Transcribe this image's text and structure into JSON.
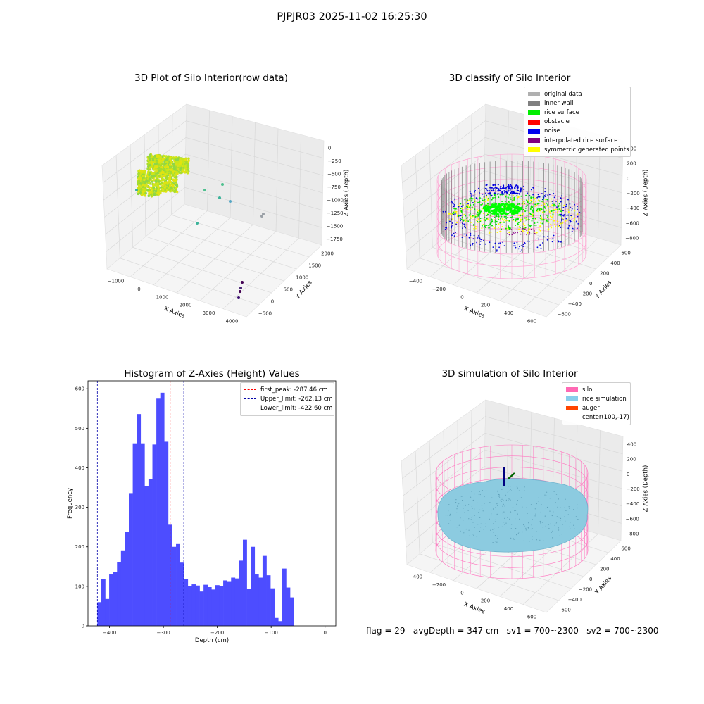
{
  "figure": {
    "suptitle": "PJPJR03 2025-11-02 16:25:30",
    "footer": "flag = 29   avgDepth = 347 cm   sv1 = 700~2300   sv2 = 700~2300"
  },
  "panels": {
    "raw": {
      "title": "3D Plot of Silo Interior(row data)",
      "xlabel": "X Axies",
      "ylabel": "Y Axies",
      "zlabel": "Z Axies (Depth)",
      "xticks": [
        "−1000",
        "0",
        "1000",
        "2000",
        "3000",
        "4000"
      ],
      "yticks": [
        "−500",
        "0",
        "500",
        "1000",
        "1500",
        "2000"
      ],
      "zticks": [
        "0",
        "−250",
        "−500",
        "−750",
        "−1000",
        "−1250",
        "−1500",
        "−1750"
      ]
    },
    "classify": {
      "title": "3D classify of Silo Interior",
      "xlabel": "X Axies",
      "ylabel": "Y Axies",
      "zlabel": "Z Axies (Depth)",
      "xticks": [
        "−400",
        "−200",
        "0",
        "200",
        "400",
        "600"
      ],
      "yticks": [
        "−600",
        "−400",
        "−200",
        "0",
        "200",
        "400",
        "600"
      ],
      "zticks": [
        "400",
        "200",
        "0",
        "−200",
        "−400",
        "−600",
        "−800"
      ],
      "legend": [
        {
          "label": "original data",
          "color": "#b0b0b0"
        },
        {
          "label": "inner wall",
          "color": "#808080"
        },
        {
          "label": "rice surface",
          "color": "#00ee00"
        },
        {
          "label": "obstacle",
          "color": "#ff0000"
        },
        {
          "label": "noise",
          "color": "#0000ee"
        },
        {
          "label": "interpolated rice surface",
          "color": "#800080"
        },
        {
          "label": "symmetric generated points",
          "color": "#ffff00"
        }
      ]
    },
    "simulation": {
      "title": "3D simulation of Silo Interior",
      "xlabel": "X Axies",
      "ylabel": "Y Axies",
      "zlabel": "Z Axies (Depth)",
      "xticks": [
        "−400",
        "−200",
        "0",
        "200",
        "400",
        "600"
      ],
      "yticks": [
        "−600",
        "−400",
        "−200",
        "0",
        "200",
        "400",
        "600"
      ],
      "zticks": [
        "400",
        "200",
        "0",
        "−200",
        "−400",
        "−600",
        "−800"
      ],
      "legend": [
        {
          "label": "silo",
          "color": "#ff69b4"
        },
        {
          "label": "rice simulation",
          "color": "#87ceeb"
        },
        {
          "label": "auger",
          "color": "#ff4500"
        },
        {
          "label": "center(100,-17)",
          "color": ""
        }
      ]
    }
  },
  "chart_data": [
    {
      "type": "bar",
      "title": "Histogram of Z-Axies (Height) Values",
      "xlabel": "Depth (cm)",
      "ylabel": "Frequency",
      "bin_start": -422.6,
      "bin_width": 7.3,
      "values": [
        60,
        118,
        68,
        130,
        137,
        162,
        191,
        237,
        336,
        462,
        536,
        462,
        354,
        372,
        459,
        575,
        590,
        466,
        256,
        200,
        207,
        160,
        118,
        100,
        105,
        102,
        87,
        104,
        98,
        92,
        103,
        100,
        115,
        113,
        122,
        120,
        165,
        218,
        93,
        200,
        130,
        122,
        177,
        128,
        95,
        20,
        12,
        145,
        97,
        72
      ],
      "xlim": [
        -440,
        20
      ],
      "ylim": [
        0,
        620
      ],
      "xticks": [
        -400,
        -300,
        -200,
        -100,
        0
      ],
      "yticks": [
        0,
        100,
        200,
        300,
        400,
        500,
        600
      ],
      "bar_color": "#4d4dff",
      "vlines": [
        {
          "label": "first_peak: -287.46 cm",
          "x": -287.46,
          "color": "#ff0000"
        },
        {
          "label": "Upper_limit: -262.13 cm",
          "x": -262.13,
          "color": "#0000aa"
        },
        {
          "label": "Lower_limit: -422.60 cm",
          "x": -422.6,
          "color": "#0000aa"
        }
      ]
    }
  ]
}
